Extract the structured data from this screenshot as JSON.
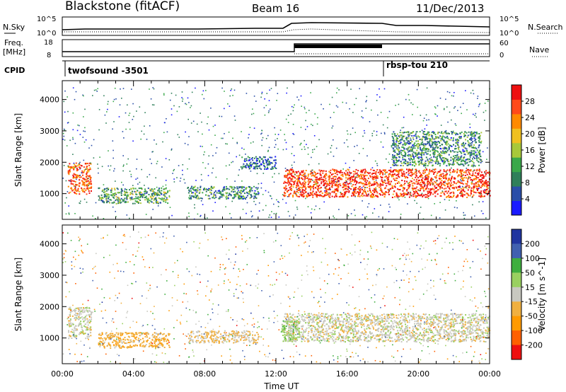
{
  "header": {
    "station": "Blackstone (fitACF)",
    "beam": "Beam 16",
    "date": "11/Dec/2013"
  },
  "side_labels": {
    "nsky": "N.Sky",
    "nsearch": "N.Search",
    "freq": "Freq.",
    "freq_unit": "[MHz]",
    "nave": "Nave",
    "cpid": "CPID"
  },
  "noise_axis": {
    "left_ticks": [
      "10^5",
      "10^0"
    ],
    "right_ticks": [
      "10^5",
      "10^0"
    ]
  },
  "freq_axis": {
    "left_ticks": [
      "18",
      "8"
    ],
    "right_ticks": [
      "60",
      "0"
    ]
  },
  "cpid_segments": [
    {
      "label": "twofsound -3501",
      "start_hour": 0
    },
    {
      "label": "rbsp-tou 210",
      "start_hour": 18.0
    }
  ],
  "colors": {
    "power": [
      "#1a1aff",
      "#2a4ea8",
      "#2f7f5a",
      "#3aa84a",
      "#a8c83a",
      "#f0c020",
      "#ff8a00",
      "#ff4a1a",
      "#ee1010"
    ],
    "velocity": [
      "#2035a0",
      "#4060b0",
      "#3fae3f",
      "#99d060",
      "#c8c8c0",
      "#f0b040",
      "#ff9a00",
      "#ff6000",
      "#ee1010"
    ]
  },
  "chart_data": [
    {
      "type": "heatmap",
      "ylabel": "Slant Range [km]",
      "xlabel": "",
      "xlim": [
        0,
        24
      ],
      "ylim": [
        180,
        4600
      ],
      "yticks": [
        1000,
        2000,
        3000,
        4000
      ],
      "colorbar": {
        "label": "Power [dB]",
        "ticks": [
          4,
          8,
          12,
          16,
          20,
          24,
          28
        ],
        "range": [
          0,
          32
        ]
      },
      "features": [
        {
          "t": [
            0.3,
            1.6
          ],
          "r": [
            1000,
            2000
          ],
          "value": 26
        },
        {
          "t": [
            2.0,
            6.0
          ],
          "r": [
            700,
            1200
          ],
          "value": 12
        },
        {
          "t": [
            7.0,
            11.0
          ],
          "r": [
            850,
            1250
          ],
          "value": 10
        },
        {
          "t": [
            12.4,
            24.0
          ],
          "r": [
            900,
            1800
          ],
          "value": 28
        },
        {
          "t": [
            10.0,
            12.0
          ],
          "r": [
            1800,
            2200
          ],
          "value": 6
        },
        {
          "t": [
            18.5,
            23.5
          ],
          "r": [
            1900,
            3000
          ],
          "value": 10
        }
      ]
    },
    {
      "type": "heatmap",
      "ylabel": "Slant Range [km]",
      "xlabel": "Time UT",
      "xlim": [
        0,
        24
      ],
      "ylim": [
        180,
        4600
      ],
      "yticks": [
        1000,
        2000,
        3000,
        4000
      ],
      "xtick_labels": [
        "00:00",
        "04:00",
        "08:00",
        "12:00",
        "16:00",
        "20:00",
        "00:00"
      ],
      "colorbar": {
        "label": "Velocity [m s^-1]",
        "ticks": [
          200,
          100,
          50,
          15,
          -15,
          -50,
          -100,
          -200
        ],
        "range": [
          -250,
          250
        ]
      },
      "features": [
        {
          "t": [
            0.3,
            1.6
          ],
          "r": [
            1000,
            2000
          ],
          "value": 0
        },
        {
          "t": [
            2.0,
            6.0
          ],
          "r": [
            700,
            1200
          ],
          "value": -60
        },
        {
          "t": [
            7.0,
            11.0
          ],
          "r": [
            850,
            1250
          ],
          "value": -30
        },
        {
          "t": [
            12.4,
            24.0
          ],
          "r": [
            900,
            1800
          ],
          "value": 0
        },
        {
          "t": [
            12.3,
            13.3
          ],
          "r": [
            900,
            1600
          ],
          "value": 60
        }
      ]
    }
  ]
}
